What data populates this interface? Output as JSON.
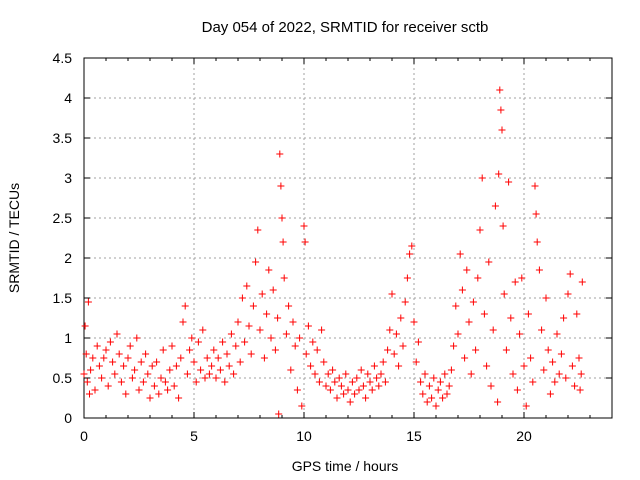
{
  "chart_data": {
    "type": "scatter",
    "title": "Day 054 of 2022, SRMTID for receiver sctb",
    "xlabel": "GPS time / hours",
    "ylabel": "SRMTID / TECUs",
    "xlim": [
      0,
      24
    ],
    "ylim": [
      0,
      4.5
    ],
    "xticks": [
      0,
      5,
      10,
      15,
      20
    ],
    "xtick_labels": [
      "0",
      "5",
      "10",
      "15",
      "20"
    ],
    "yticks": [
      0,
      0.5,
      1,
      1.5,
      2,
      2.5,
      3,
      3.5,
      4,
      4.5
    ],
    "ytick_labels": [
      "0",
      "0.5",
      "1",
      "1.5",
      "2",
      "2.5",
      "3",
      "3.5",
      "4",
      "4.5"
    ],
    "grid": true,
    "marker": "+",
    "color": "#ff0000",
    "series": [
      {
        "name": "SRMTID",
        "points": [
          [
            0.0,
            0.55
          ],
          [
            0.05,
            1.15
          ],
          [
            0.1,
            0.8
          ],
          [
            0.15,
            0.45
          ],
          [
            0.2,
            1.45
          ],
          [
            0.25,
            0.3
          ],
          [
            0.3,
            0.6
          ],
          [
            0.4,
            0.75
          ],
          [
            0.5,
            0.35
          ],
          [
            0.6,
            0.9
          ],
          [
            0.7,
            0.65
          ],
          [
            0.8,
            0.5
          ],
          [
            0.9,
            0.75
          ],
          [
            1.0,
            0.85
          ],
          [
            1.1,
            0.4
          ],
          [
            1.2,
            0.95
          ],
          [
            1.3,
            0.7
          ],
          [
            1.4,
            0.55
          ],
          [
            1.5,
            1.05
          ],
          [
            1.6,
            0.8
          ],
          [
            1.7,
            0.45
          ],
          [
            1.8,
            0.65
          ],
          [
            1.9,
            0.3
          ],
          [
            2.0,
            0.75
          ],
          [
            2.1,
            0.9
          ],
          [
            2.2,
            0.5
          ],
          [
            2.3,
            0.6
          ],
          [
            2.4,
            1.0
          ],
          [
            2.5,
            0.35
          ],
          [
            2.6,
            0.7
          ],
          [
            2.7,
            0.45
          ],
          [
            2.8,
            0.8
          ],
          [
            2.9,
            0.55
          ],
          [
            3.0,
            0.25
          ],
          [
            3.1,
            0.65
          ],
          [
            3.2,
            0.4
          ],
          [
            3.3,
            0.7
          ],
          [
            3.4,
            0.3
          ],
          [
            3.5,
            0.5
          ],
          [
            3.6,
            0.85
          ],
          [
            3.7,
            0.45
          ],
          [
            3.8,
            0.35
          ],
          [
            3.9,
            0.6
          ],
          [
            4.0,
            0.9
          ],
          [
            4.1,
            0.4
          ],
          [
            4.2,
            0.65
          ],
          [
            4.3,
            0.25
          ],
          [
            4.4,
            0.75
          ],
          [
            4.5,
            1.2
          ],
          [
            4.6,
            1.4
          ],
          [
            4.7,
            0.55
          ],
          [
            4.8,
            0.85
          ],
          [
            4.9,
            1.0
          ],
          [
            5.0,
            0.7
          ],
          [
            5.1,
            0.45
          ],
          [
            5.2,
            0.95
          ],
          [
            5.3,
            0.6
          ],
          [
            5.4,
            1.1
          ],
          [
            5.5,
            0.5
          ],
          [
            5.6,
            0.75
          ],
          [
            5.7,
            0.55
          ],
          [
            5.8,
            0.65
          ],
          [
            5.9,
            0.85
          ],
          [
            6.0,
            0.5
          ],
          [
            6.1,
            0.75
          ],
          [
            6.2,
            0.6
          ],
          [
            6.3,
            0.95
          ],
          [
            6.4,
            0.45
          ],
          [
            6.5,
            0.8
          ],
          [
            6.6,
            0.65
          ],
          [
            6.7,
            1.05
          ],
          [
            6.8,
            0.55
          ],
          [
            6.9,
            0.9
          ],
          [
            7.0,
            1.2
          ],
          [
            7.1,
            0.7
          ],
          [
            7.2,
            1.5
          ],
          [
            7.3,
            0.95
          ],
          [
            7.4,
            1.65
          ],
          [
            7.5,
            1.15
          ],
          [
            7.6,
            0.8
          ],
          [
            7.7,
            1.4
          ],
          [
            7.8,
            1.95
          ],
          [
            7.9,
            2.35
          ],
          [
            8.0,
            1.1
          ],
          [
            8.1,
            1.55
          ],
          [
            8.2,
            0.75
          ],
          [
            8.3,
            1.3
          ],
          [
            8.4,
            1.85
          ],
          [
            8.5,
            1.0
          ],
          [
            8.6,
            1.6
          ],
          [
            8.7,
            0.85
          ],
          [
            8.8,
            1.25
          ],
          [
            8.85,
            0.05
          ],
          [
            8.9,
            3.3
          ],
          [
            8.95,
            2.9
          ],
          [
            9.0,
            2.5
          ],
          [
            9.05,
            2.2
          ],
          [
            9.1,
            1.75
          ],
          [
            9.2,
            1.05
          ],
          [
            9.3,
            1.4
          ],
          [
            9.4,
            0.6
          ],
          [
            9.5,
            1.2
          ],
          [
            9.6,
            0.9
          ],
          [
            9.7,
            0.35
          ],
          [
            9.8,
            1.0
          ],
          [
            9.9,
            0.15
          ],
          [
            10.0,
            2.4
          ],
          [
            10.05,
            2.2
          ],
          [
            10.1,
            0.8
          ],
          [
            10.2,
            1.15
          ],
          [
            10.3,
            0.65
          ],
          [
            10.4,
            0.95
          ],
          [
            10.5,
            0.55
          ],
          [
            10.6,
            0.85
          ],
          [
            10.7,
            0.45
          ],
          [
            10.8,
            1.1
          ],
          [
            10.9,
            0.7
          ],
          [
            11.0,
            0.4
          ],
          [
            11.1,
            0.55
          ],
          [
            11.2,
            0.35
          ],
          [
            11.3,
            0.6
          ],
          [
            11.4,
            0.45
          ],
          [
            11.5,
            0.25
          ],
          [
            11.6,
            0.5
          ],
          [
            11.7,
            0.4
          ],
          [
            11.8,
            0.3
          ],
          [
            11.9,
            0.55
          ],
          [
            12.0,
            0.35
          ],
          [
            12.1,
            0.2
          ],
          [
            12.2,
            0.45
          ],
          [
            12.3,
            0.3
          ],
          [
            12.4,
            0.5
          ],
          [
            12.5,
            0.35
          ],
          [
            12.6,
            0.6
          ],
          [
            12.7,
            0.4
          ],
          [
            12.8,
            0.25
          ],
          [
            12.9,
            0.55
          ],
          [
            13.0,
            0.45
          ],
          [
            13.1,
            0.35
          ],
          [
            13.2,
            0.65
          ],
          [
            13.3,
            0.5
          ],
          [
            13.4,
            0.4
          ],
          [
            13.5,
            0.55
          ],
          [
            13.6,
            0.7
          ],
          [
            13.7,
            0.45
          ],
          [
            13.8,
            0.85
          ],
          [
            13.9,
            1.1
          ],
          [
            14.0,
            1.55
          ],
          [
            14.1,
            0.8
          ],
          [
            14.2,
            1.05
          ],
          [
            14.3,
            0.65
          ],
          [
            14.4,
            1.25
          ],
          [
            14.5,
            0.9
          ],
          [
            14.6,
            1.45
          ],
          [
            14.7,
            1.75
          ],
          [
            14.8,
            2.05
          ],
          [
            14.9,
            2.15
          ],
          [
            15.0,
            1.2
          ],
          [
            15.1,
            0.7
          ],
          [
            15.2,
            0.95
          ],
          [
            15.3,
            0.45
          ],
          [
            15.4,
            0.3
          ],
          [
            15.5,
            0.55
          ],
          [
            15.6,
            0.2
          ],
          [
            15.7,
            0.4
          ],
          [
            15.8,
            0.25
          ],
          [
            15.9,
            0.5
          ],
          [
            16.0,
            0.15
          ],
          [
            16.1,
            0.35
          ],
          [
            16.2,
            0.45
          ],
          [
            16.3,
            0.25
          ],
          [
            16.4,
            0.55
          ],
          [
            16.5,
            0.3
          ],
          [
            16.6,
            0.4
          ],
          [
            16.7,
            0.6
          ],
          [
            16.8,
            0.9
          ],
          [
            16.9,
            1.4
          ],
          [
            17.0,
            1.05
          ],
          [
            17.1,
            2.05
          ],
          [
            17.2,
            1.6
          ],
          [
            17.3,
            0.75
          ],
          [
            17.4,
            1.85
          ],
          [
            17.5,
            1.2
          ],
          [
            17.6,
            0.55
          ],
          [
            17.7,
            1.45
          ],
          [
            17.8,
            0.85
          ],
          [
            17.9,
            1.75
          ],
          [
            18.0,
            2.35
          ],
          [
            18.1,
            3.0
          ],
          [
            18.2,
            1.3
          ],
          [
            18.3,
            0.65
          ],
          [
            18.4,
            1.95
          ],
          [
            18.5,
            0.4
          ],
          [
            18.6,
            1.1
          ],
          [
            18.7,
            2.65
          ],
          [
            18.8,
            0.2
          ],
          [
            18.85,
            3.05
          ],
          [
            18.9,
            4.1
          ],
          [
            18.95,
            3.85
          ],
          [
            19.0,
            3.6
          ],
          [
            19.05,
            2.4
          ],
          [
            19.1,
            1.55
          ],
          [
            19.2,
            0.85
          ],
          [
            19.3,
            2.95
          ],
          [
            19.4,
            1.25
          ],
          [
            19.5,
            0.55
          ],
          [
            19.6,
            1.7
          ],
          [
            19.7,
            0.35
          ],
          [
            19.8,
            1.05
          ],
          [
            19.9,
            1.75
          ],
          [
            20.0,
            0.65
          ],
          [
            20.1,
            0.15
          ],
          [
            20.2,
            1.3
          ],
          [
            20.3,
            0.75
          ],
          [
            20.4,
            0.45
          ],
          [
            20.5,
            2.9
          ],
          [
            20.55,
            2.55
          ],
          [
            20.6,
            2.2
          ],
          [
            20.7,
            1.85
          ],
          [
            20.8,
            1.1
          ],
          [
            20.9,
            0.6
          ],
          [
            21.0,
            1.5
          ],
          [
            21.1,
            0.85
          ],
          [
            21.2,
            0.3
          ],
          [
            21.3,
            0.7
          ],
          [
            21.4,
            0.45
          ],
          [
            21.5,
            1.05
          ],
          [
            21.6,
            0.55
          ],
          [
            21.7,
            0.8
          ],
          [
            21.8,
            1.25
          ],
          [
            21.9,
            0.5
          ],
          [
            22.0,
            1.55
          ],
          [
            22.1,
            1.8
          ],
          [
            22.2,
            0.65
          ],
          [
            22.3,
            0.4
          ],
          [
            22.4,
            1.3
          ],
          [
            22.5,
            0.75
          ],
          [
            22.55,
            0.35
          ],
          [
            22.6,
            0.55
          ],
          [
            22.65,
            1.7
          ]
        ]
      }
    ]
  }
}
